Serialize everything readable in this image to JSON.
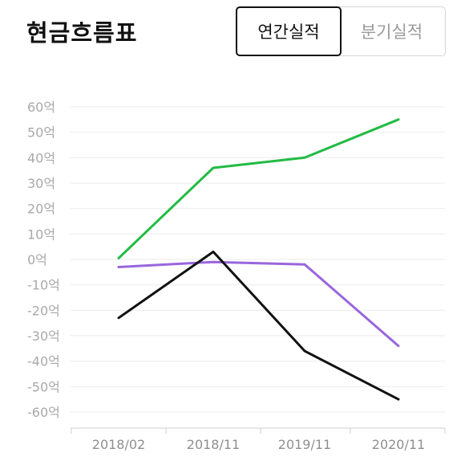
{
  "header": {
    "title": "현금흐름표",
    "tabs": [
      {
        "label": "연간실적",
        "active": true
      },
      {
        "label": "분기실적",
        "active": false
      }
    ]
  },
  "chart_data": {
    "type": "line",
    "title": "",
    "xlabel": "",
    "ylabel": "",
    "categories": [
      "2018/02",
      "2018/11",
      "2019/11",
      "2020/11"
    ],
    "y_ticks": [
      "60억",
      "50억",
      "40억",
      "30억",
      "20억",
      "10억",
      "0억",
      "-10억",
      "-20억",
      "-30억",
      "-40억",
      "-50억",
      "-60억"
    ],
    "ylim": [
      -60,
      60
    ],
    "unit": "억",
    "grid": true,
    "legend": "none",
    "series": [
      {
        "color": "#22bb44",
        "values": [
          0.5,
          36,
          40,
          55
        ]
      },
      {
        "color": "#9966dd",
        "values": [
          -3,
          -1,
          -2,
          -34
        ]
      },
      {
        "color": "#111111",
        "values": [
          -23,
          3,
          -36,
          -55
        ]
      }
    ]
  }
}
